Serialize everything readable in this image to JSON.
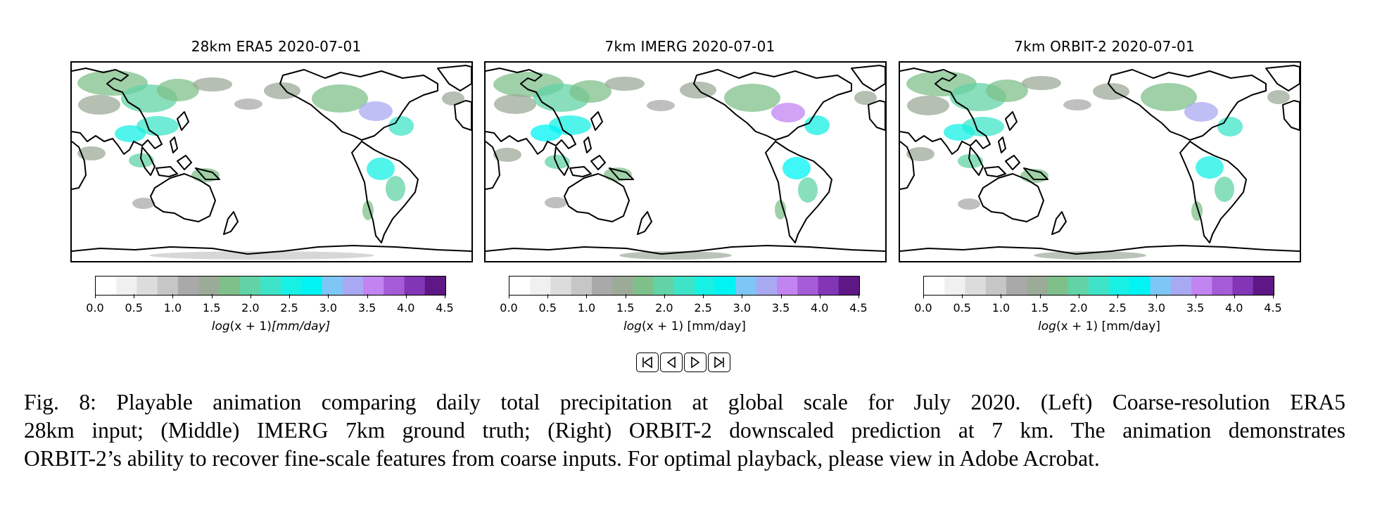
{
  "panels": [
    {
      "title": "28km ERA5 2020-07-01",
      "colorbar_label_pre": "log",
      "colorbar_label_var": "(x + 1)",
      "colorbar_label_unit": "[mm/day]",
      "italic_unit": true
    },
    {
      "title": "7km IMERG 2020-07-01",
      "colorbar_label_pre": "log",
      "colorbar_label_var": "(x + 1)",
      "colorbar_label_unit": " [mm/day]",
      "italic_unit": false
    },
    {
      "title": "7km ORBIT-2 2020-07-01",
      "colorbar_label_pre": "log",
      "colorbar_label_var": "(x + 1)",
      "colorbar_label_unit": " [mm/day]",
      "italic_unit": false
    }
  ],
  "colorbar": {
    "ticks": [
      "0.0",
      "0.5",
      "1.0",
      "1.5",
      "2.0",
      "2.5",
      "3.0",
      "3.5",
      "4.0",
      "4.5"
    ],
    "range": [
      0.0,
      4.5
    ],
    "colors": [
      "#ffffff",
      "#f0f0f0",
      "#dcdcdc",
      "#c6c6c6",
      "#a9a9a9",
      "#9caa98",
      "#7fc08a",
      "#62d3a6",
      "#3fe4c8",
      "#17f0e4",
      "#00f4f4",
      "#7ec6f5",
      "#a9a8f2",
      "#c284f0",
      "#a65cd6",
      "#8235b5",
      "#5e1785"
    ]
  },
  "controls": [
    {
      "name": "first-frame",
      "icon": "skip-to-start-icon"
    },
    {
      "name": "previous-frame",
      "icon": "step-back-icon"
    },
    {
      "name": "play",
      "icon": "play-icon"
    },
    {
      "name": "last-frame",
      "icon": "skip-to-end-icon"
    }
  ],
  "caption": {
    "line1": "Fig. 8: Playable animation comparing daily total precipitation at global scale for July 2020. (Left) Coarse-resolution ERA5",
    "line2": "28km input; (Middle) IMERG 7km ground truth; (Right) ORBIT-2 downscaled prediction at 7 km. The animation demonstrates",
    "line3": "ORBIT-2’s ability to recover fine-scale features from coarse inputs. For optimal playback, please view in Adobe Acrobat."
  }
}
